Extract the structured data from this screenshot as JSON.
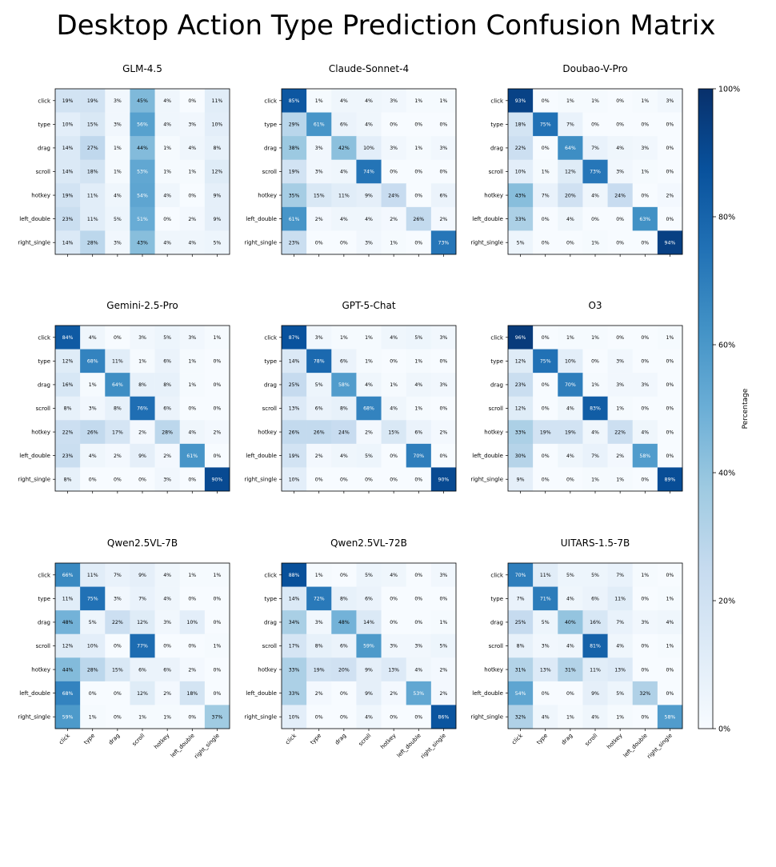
{
  "figure": {
    "title": "Desktop Action Type Prediction Confusion Matrix"
  },
  "chart_data": {
    "type": "heatmap",
    "title": "Desktop Action Type Prediction Confusion Matrix",
    "labels": [
      "click",
      "type",
      "drag",
      "scroll",
      "hotkey",
      "left_double",
      "right_single"
    ],
    "value_unit": "%",
    "colorbar": {
      "label": "Percentage",
      "ticks": [
        "0%",
        "20%",
        "40%",
        "60%",
        "80%",
        "100%"
      ],
      "range": [
        0,
        100
      ],
      "colormap": "Blues",
      "low_color": "#f7fbff",
      "high_color": "#08306b"
    },
    "matrices": [
      {
        "name": "GLM-4.5",
        "values": [
          [
            19,
            19,
            3,
            45,
            4,
            0,
            11
          ],
          [
            10,
            15,
            3,
            56,
            4,
            3,
            10
          ],
          [
            14,
            27,
            1,
            44,
            1,
            4,
            8
          ],
          [
            14,
            18,
            1,
            53,
            1,
            1,
            12
          ],
          [
            19,
            11,
            4,
            54,
            4,
            0,
            9
          ],
          [
            23,
            11,
            5,
            51,
            0,
            2,
            9
          ],
          [
            14,
            28,
            3,
            43,
            4,
            4,
            5
          ]
        ]
      },
      {
        "name": "Claude-Sonnet-4",
        "values": [
          [
            85,
            1,
            4,
            4,
            3,
            1,
            1
          ],
          [
            29,
            61,
            6,
            4,
            0,
            0,
            0
          ],
          [
            38,
            3,
            42,
            10,
            3,
            1,
            3
          ],
          [
            19,
            3,
            4,
            74,
            0,
            0,
            0
          ],
          [
            35,
            15,
            11,
            9,
            24,
            0,
            6
          ],
          [
            61,
            2,
            4,
            4,
            2,
            26,
            2
          ],
          [
            23,
            0,
            0,
            3,
            1,
            0,
            73
          ]
        ]
      },
      {
        "name": "Doubao-V-Pro",
        "values": [
          [
            93,
            0,
            1,
            1,
            0,
            1,
            3
          ],
          [
            18,
            75,
            7,
            0,
            0,
            0,
            0
          ],
          [
            22,
            0,
            64,
            7,
            4,
            3,
            0
          ],
          [
            10,
            1,
            12,
            73,
            3,
            1,
            0
          ],
          [
            43,
            7,
            20,
            4,
            24,
            0,
            2
          ],
          [
            33,
            0,
            4,
            0,
            0,
            63,
            0
          ],
          [
            5,
            0,
            0,
            1,
            0,
            0,
            94
          ]
        ]
      },
      {
        "name": "Gemini-2.5-Pro",
        "values": [
          [
            84,
            4,
            0,
            3,
            5,
            3,
            1
          ],
          [
            12,
            68,
            11,
            1,
            6,
            1,
            0
          ],
          [
            16,
            1,
            64,
            8,
            8,
            1,
            0
          ],
          [
            8,
            3,
            8,
            76,
            6,
            0,
            0
          ],
          [
            22,
            26,
            17,
            2,
            28,
            4,
            2
          ],
          [
            23,
            4,
            2,
            9,
            2,
            61,
            0
          ],
          [
            8,
            0,
            0,
            0,
            3,
            0,
            90
          ]
        ]
      },
      {
        "name": "GPT-5-Chat",
        "values": [
          [
            87,
            3,
            1,
            1,
            4,
            5,
            3
          ],
          [
            14,
            78,
            6,
            1,
            0,
            1,
            0
          ],
          [
            25,
            5,
            58,
            4,
            1,
            4,
            3
          ],
          [
            13,
            6,
            8,
            68,
            4,
            1,
            0
          ],
          [
            26,
            26,
            24,
            2,
            15,
            6,
            2
          ],
          [
            19,
            2,
            4,
            5,
            0,
            70,
            0
          ],
          [
            10,
            0,
            0,
            0,
            0,
            0,
            90
          ]
        ]
      },
      {
        "name": "O3",
        "values": [
          [
            96,
            0,
            1,
            1,
            0,
            0,
            1
          ],
          [
            12,
            75,
            10,
            0,
            3,
            0,
            0
          ],
          [
            23,
            0,
            70,
            1,
            3,
            3,
            0
          ],
          [
            12,
            0,
            4,
            83,
            1,
            0,
            0
          ],
          [
            33,
            19,
            19,
            4,
            22,
            4,
            0
          ],
          [
            30,
            0,
            4,
            7,
            2,
            58,
            0
          ],
          [
            9,
            0,
            0,
            1,
            1,
            0,
            89
          ]
        ]
      },
      {
        "name": "Qwen2.5VL-7B",
        "values": [
          [
            66,
            11,
            7,
            9,
            4,
            1,
            1
          ],
          [
            11,
            75,
            3,
            7,
            4,
            0,
            0
          ],
          [
            48,
            5,
            22,
            12,
            3,
            10,
            0
          ],
          [
            12,
            10,
            0,
            77,
            0,
            0,
            1
          ],
          [
            44,
            28,
            15,
            6,
            6,
            2,
            0
          ],
          [
            68,
            0,
            0,
            12,
            2,
            18,
            0
          ],
          [
            59,
            1,
            0,
            1,
            1,
            0,
            37
          ]
        ]
      },
      {
        "name": "Qwen2.5VL-72B",
        "values": [
          [
            88,
            1,
            0,
            5,
            4,
            0,
            3
          ],
          [
            14,
            72,
            8,
            6,
            0,
            0,
            0
          ],
          [
            34,
            3,
            48,
            14,
            0,
            0,
            1
          ],
          [
            17,
            8,
            6,
            59,
            3,
            3,
            5
          ],
          [
            33,
            19,
            20,
            9,
            13,
            4,
            2
          ],
          [
            33,
            2,
            0,
            9,
            2,
            53,
            2
          ],
          [
            10,
            0,
            0,
            4,
            0,
            0,
            86
          ]
        ]
      },
      {
        "name": "UITARS-1.5-7B",
        "values": [
          [
            70,
            11,
            5,
            5,
            7,
            1,
            0
          ],
          [
            7,
            71,
            4,
            6,
            11,
            0,
            1
          ],
          [
            25,
            5,
            40,
            16,
            7,
            3,
            4
          ],
          [
            8,
            3,
            4,
            81,
            4,
            0,
            1
          ],
          [
            31,
            13,
            31,
            11,
            13,
            0,
            0
          ],
          [
            54,
            0,
            0,
            9,
            5,
            32,
            0
          ],
          [
            32,
            4,
            1,
            4,
            1,
            0,
            58
          ]
        ]
      }
    ]
  }
}
